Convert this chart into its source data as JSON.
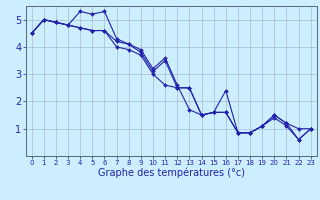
{
  "xlabel": "Graphe des températures (°c)",
  "x_values": [
    0,
    1,
    2,
    3,
    4,
    5,
    6,
    7,
    8,
    9,
    10,
    11,
    12,
    13,
    14,
    15,
    16,
    17,
    18,
    19,
    20,
    21,
    22,
    23
  ],
  "line1": [
    4.5,
    5.0,
    4.9,
    4.8,
    5.3,
    5.2,
    5.3,
    4.3,
    4.1,
    3.9,
    3.2,
    3.6,
    2.6,
    1.7,
    1.5,
    1.6,
    2.4,
    0.85,
    0.85,
    1.1,
    1.5,
    1.2,
    1.0,
    1.0
  ],
  "line2": [
    4.5,
    5.0,
    4.9,
    4.8,
    4.7,
    4.6,
    4.6,
    4.2,
    4.1,
    3.8,
    3.1,
    3.5,
    2.5,
    2.5,
    1.5,
    1.6,
    1.6,
    0.85,
    0.85,
    1.1,
    1.5,
    1.2,
    0.6,
    1.0
  ],
  "line3": [
    4.5,
    5.0,
    4.9,
    4.8,
    4.7,
    4.6,
    4.6,
    4.0,
    3.9,
    3.7,
    3.0,
    2.6,
    2.5,
    2.5,
    1.5,
    1.6,
    1.6,
    0.85,
    0.85,
    1.1,
    1.4,
    1.1,
    0.6,
    1.0
  ],
  "bg_color": "#cceeff",
  "grid_color": "#aabbcc",
  "line_color": "#2222aa",
  "ylim": [
    0,
    5.5
  ],
  "xlim": [
    -0.5,
    23.5
  ],
  "yticks": [
    1,
    2,
    3,
    4,
    5
  ],
  "xticks": [
    0,
    1,
    2,
    3,
    4,
    5,
    6,
    7,
    8,
    9,
    10,
    11,
    12,
    13,
    14,
    15,
    16,
    17,
    18,
    19,
    20,
    21,
    22,
    23
  ],
  "xlabel_fontsize": 7,
  "ytick_fontsize": 7,
  "xtick_fontsize": 5
}
